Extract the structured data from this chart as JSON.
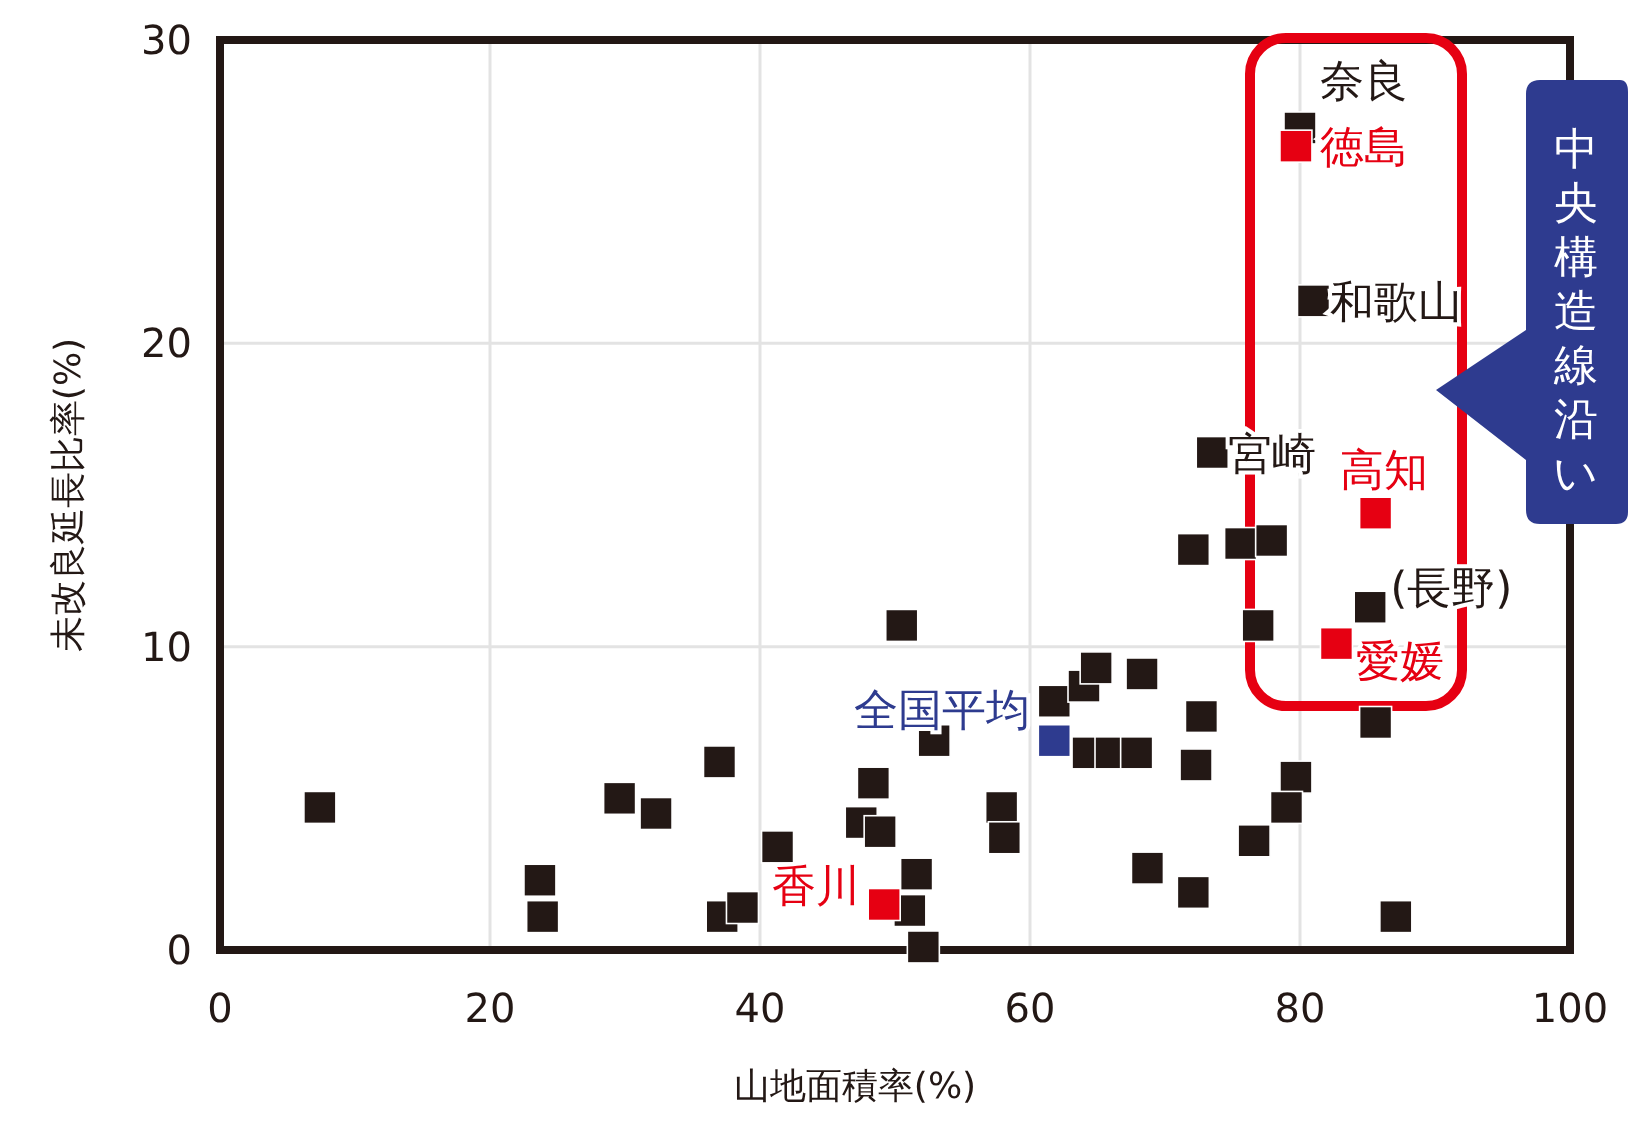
{
  "chart_data": {
    "type": "scatter",
    "xlabel": "山地面積率(%)",
    "ylabel": "未改良延長比率(%)",
    "xlim": [
      0,
      100
    ],
    "ylim": [
      0,
      30
    ],
    "xticks": [
      0,
      20,
      40,
      60,
      80,
      100
    ],
    "yticks": [
      0,
      10,
      20,
      30
    ],
    "grid": true,
    "marker": "square",
    "series": [
      {
        "color": "#231815",
        "x": [
          7.4,
          23.7,
          23.9,
          29.6,
          32.3,
          37.0,
          37.2,
          38.7,
          41.3,
          50.5,
          48.4,
          47.5,
          48.9,
          52.9,
          51.6,
          51.1,
          52.1,
          57.9,
          58.1,
          61.8,
          64.0,
          64.9,
          64.3,
          66.0,
          67.9,
          68.3,
          68.7,
          72.1,
          75.6,
          77.9,
          73.5,
          76.9,
          72.7,
          72.3,
          79.7,
          79.0,
          76.6,
          72.1,
          87.1,
          85.2,
          85.6,
          80.0,
          81.0
        ],
        "values": [
          4.7,
          2.3,
          1.1,
          5.0,
          4.5,
          6.2,
          1.1,
          1.4,
          3.4,
          10.7,
          5.5,
          4.2,
          3.9,
          6.9,
          2.5,
          1.3,
          0.1,
          4.7,
          3.7,
          8.2,
          8.7,
          9.3,
          6.5,
          6.5,
          6.5,
          9.1,
          2.7,
          13.2,
          13.4,
          13.5,
          16.4,
          10.7,
          7.7,
          6.1,
          5.7,
          4.7,
          3.6,
          1.9,
          1.1,
          11.3,
          7.5,
          27.1,
          21.4
        ]
      },
      {
        "color": "#e60012",
        "x": [
          49.2,
          79.7,
          85.6,
          82.7
        ],
        "values": [
          1.5,
          26.5,
          14.4,
          10.1
        ]
      },
      {
        "color": "#2e3b8f",
        "x": [
          61.8
        ],
        "values": [
          6.9
        ]
      }
    ],
    "annotations": [
      {
        "text": "奈良",
        "x": 80.0,
        "y": 27.1
      },
      {
        "text": "徳島",
        "x": 79.7,
        "y": 26.5
      },
      {
        "text": "和歌山",
        "x": 81.0,
        "y": 21.4
      },
      {
        "text": "宮崎",
        "x": 73.5,
        "y": 16.4
      },
      {
        "text": "高知",
        "x": 85.6,
        "y": 14.4
      },
      {
        "text": "(長野)",
        "x": 85.2,
        "y": 11.3
      },
      {
        "text": "愛媛",
        "x": 82.7,
        "y": 10.1
      },
      {
        "text": "全国平均",
        "x": 61.8,
        "y": 6.9
      },
      {
        "text": "香川",
        "x": 49.2,
        "y": 1.5
      },
      "中央構造線沿い"
    ]
  }
}
